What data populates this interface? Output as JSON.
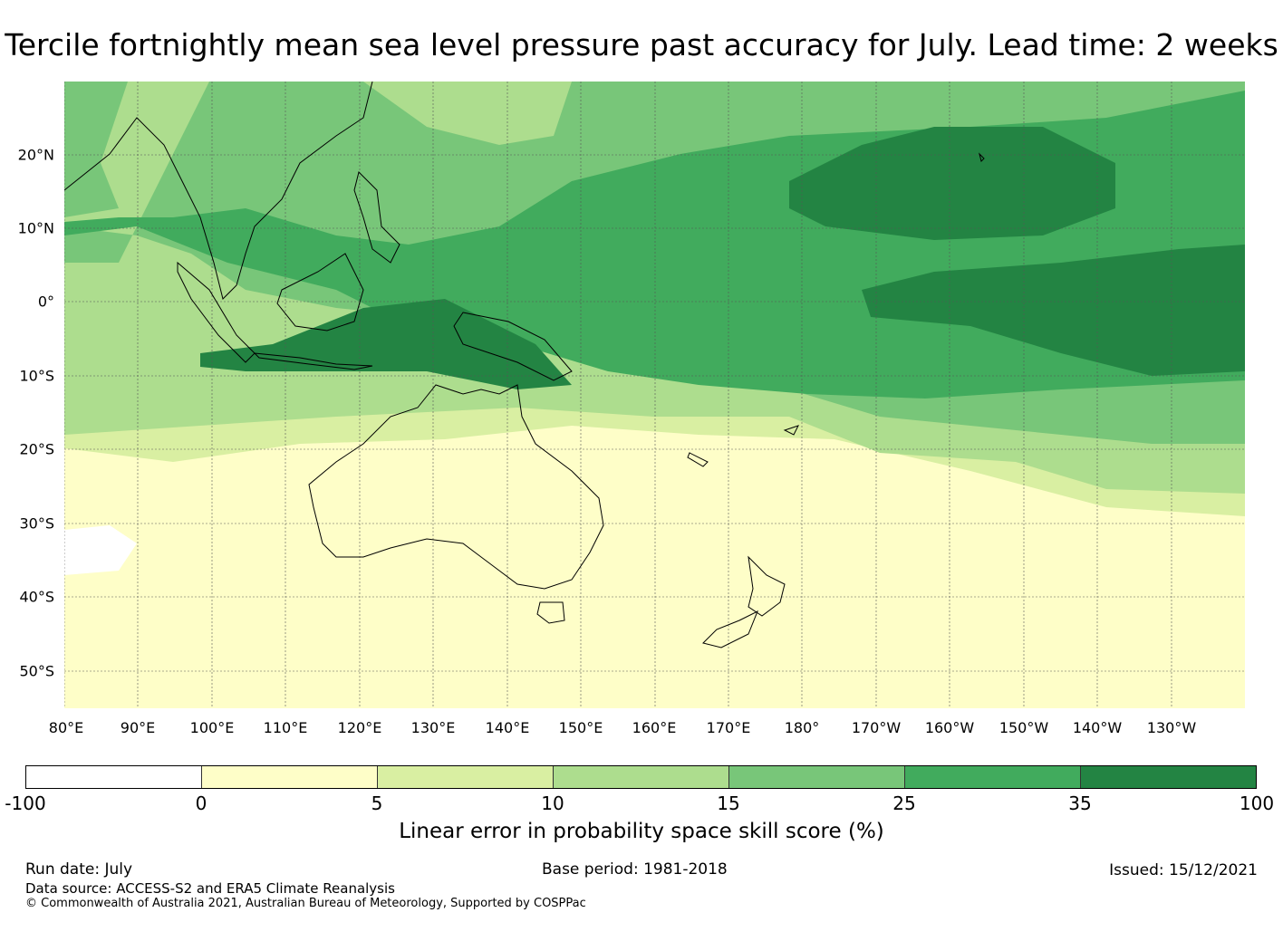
{
  "title": "Tercile fortnightly mean sea level pressure past accuracy for July. Lead time: 2 weeks",
  "map": {
    "lat_labels": [
      "20°N",
      "10°N",
      "0°",
      "10°S",
      "20°S",
      "30°S",
      "40°S",
      "50°S"
    ],
    "lon_labels": [
      "80°E",
      "90°E",
      "100°E",
      "110°E",
      "120°E",
      "130°E",
      "140°E",
      "150°E",
      "160°E",
      "170°E",
      "180°",
      "170°W",
      "160°W",
      "150°W",
      "140°W",
      "130°W"
    ],
    "lon_range": [
      80,
      240
    ],
    "lat_range": [
      -55,
      30
    ],
    "gridlines": true
  },
  "colorbar": {
    "tick_labels": [
      "-100",
      "0",
      "5",
      "10",
      "15",
      "25",
      "35",
      "100"
    ],
    "colors": [
      "#ffffff",
      "#fefec8",
      "#d9efa2",
      "#addd8e",
      "#78c679",
      "#41ab5d",
      "#238443"
    ],
    "label": "Linear error in probability space skill score (%)"
  },
  "footer": {
    "run_date": "Run date: July",
    "base_period": "Base period: 1981-2018",
    "issued": "Issued: 15/12/2021",
    "data_source": "Data source: ACCESS-S2 and ERA5 Climate Reanalysis",
    "copyright": "© Commonwealth of Australia 2021, Australian Bureau of Meteorology, Supported by COSPPac"
  }
}
